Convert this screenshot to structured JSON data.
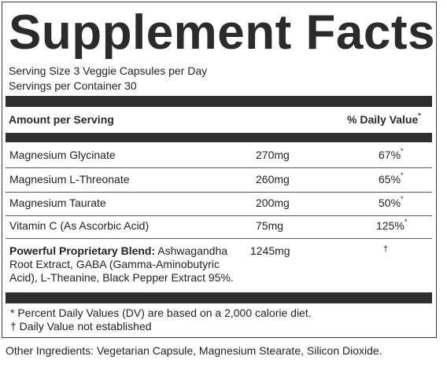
{
  "title": "Supplement Facts",
  "serving_size": "Serving Size 3 Veggie Capsules per Day",
  "servings_per_container": "Servings per Container 30",
  "header": {
    "amount_label": "Amount per Serving",
    "dv_label": "% Daily Value",
    "dv_mark": "*"
  },
  "ingredients": [
    {
      "name": "Magnesium Glycinate",
      "amount": "270mg",
      "dv": "67%",
      "mark": "*"
    },
    {
      "name": "Magnesium L-Threonate",
      "amount": "260mg",
      "dv": "65%",
      "mark": "*"
    },
    {
      "name": "Magnesium Taurate",
      "amount": "200mg",
      "dv": "50%",
      "mark": "*"
    },
    {
      "name": "Vitamin C (As Ascorbic Acid)",
      "amount": "75mg",
      "dv": "125%",
      "mark": "*"
    }
  ],
  "blend": {
    "label": "Powerful Proprietary Blend:",
    "contents": " Ashwagandha Root Extract, GABA (Gamma-Aminobutyric Acid), L-Theanine, Black Pepper Extract 95%.",
    "amount": "1245mg",
    "dv": "†"
  },
  "footnotes": [
    "* Percent Daily Values (DV) are based on a 2,000 calorie diet.",
    "† Daily Value not established"
  ],
  "other_ingredients": "Other Ingredients: Vegetarian Capsule, Magnesium Stearate, Silicon Dioxide."
}
